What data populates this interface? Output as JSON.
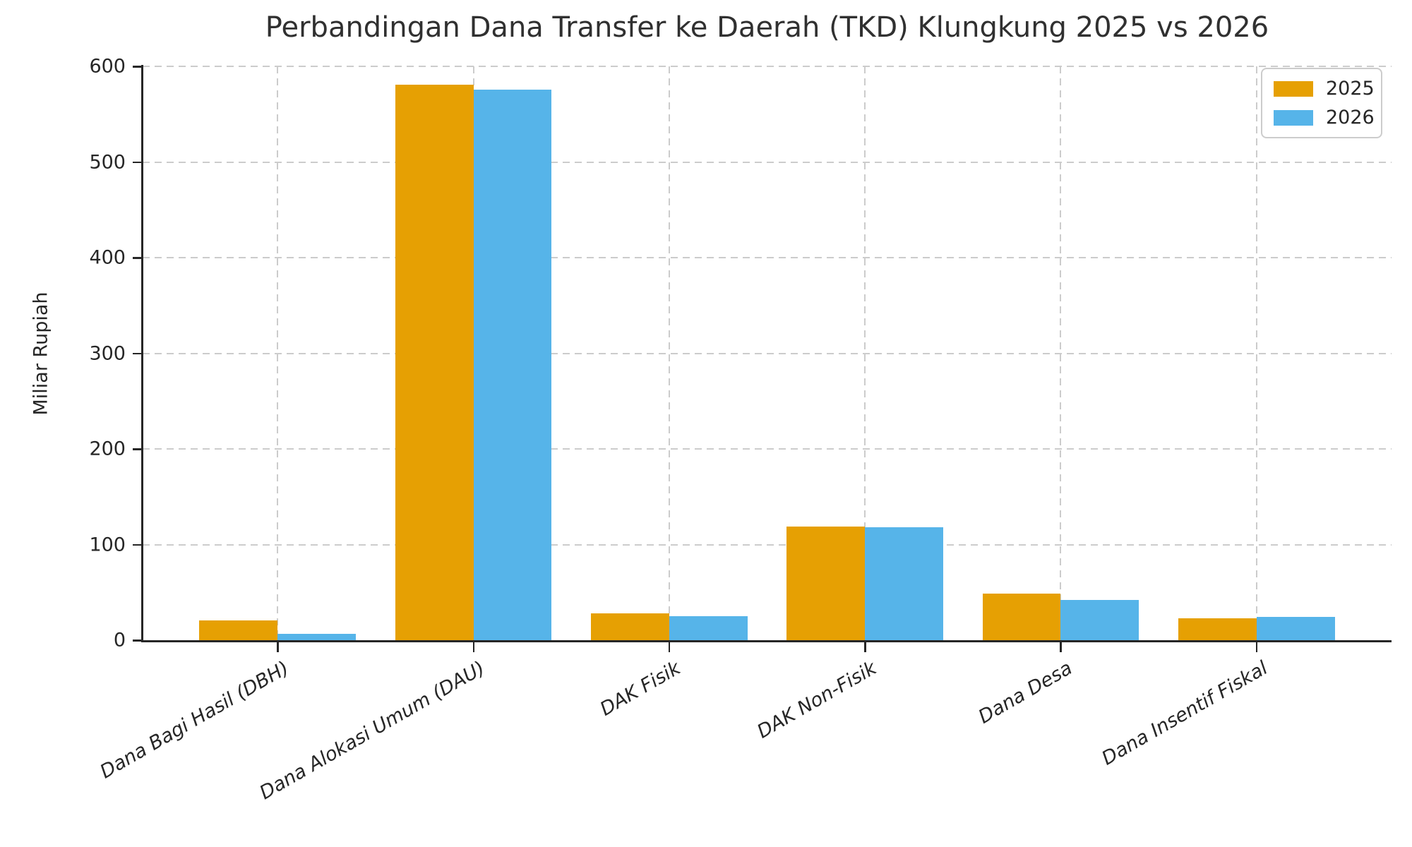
{
  "chart_data": {
    "type": "bar",
    "title": "Perbandingan Dana Transfer ke Daerah (TKD) Klungkung 2025 vs 2026",
    "xlabel": "",
    "ylabel": "Miliar Rupiah",
    "categories": [
      "Dana Bagi Hasil (DBH)",
      "Dana Alokasi Umum (DAU)",
      "DAK Fisik",
      "DAK Non-Fisik",
      "Dana Desa",
      "Dana Insentif Fiskal"
    ],
    "series": [
      {
        "name": "2025",
        "color": "#E6A003",
        "values": [
          21,
          581,
          28,
          119,
          49,
          23
        ]
      },
      {
        "name": "2026",
        "color": "#56B4E9",
        "values": [
          7,
          576,
          25,
          118,
          42,
          24
        ]
      }
    ],
    "ylim": [
      0,
      600
    ],
    "yticks": [
      0,
      100,
      200,
      300,
      400,
      500,
      600
    ],
    "grid": "dashed, horizontal at yticks and vertical at category centers",
    "legend_position": "upper right",
    "bar_color_2025": "#E6A003",
    "bar_color_2026": "#56B4E9",
    "grid_color": "#cccccc",
    "axis_color": "#262626"
  }
}
